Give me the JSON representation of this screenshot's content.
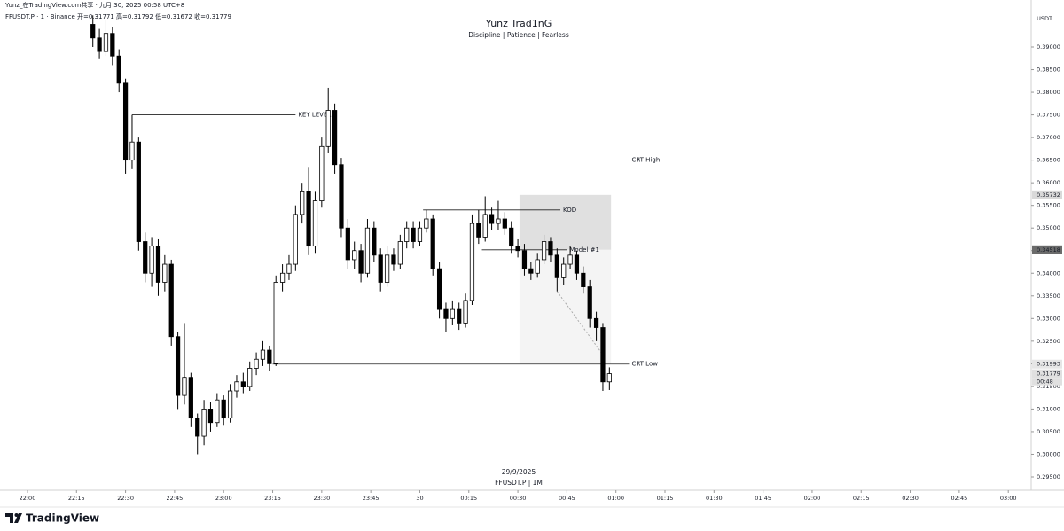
{
  "header": {
    "shared": "Yunz_在TradingView.com共享 · 九月 30, 2025 00:58 UTC+8",
    "symbol_line": "FFUSDT.P · 1 · Binance  开=0.31771  高=0.31792  低=0.31672  收=0.31779"
  },
  "chart_data": {
    "type": "candlestick",
    "title": "Yunz Trad1nG",
    "subtitle": "Discipline | Patience | Fearless",
    "date_label": "29/9/2025",
    "symbol_label": "FFUSDT.P | 1M",
    "currency": "USDT",
    "countdown": "00:48",
    "up_color": "#ffffff",
    "down_color": "#000000",
    "x": [
      20,
      22,
      24,
      26,
      28,
      30,
      32,
      34,
      36,
      38,
      40,
      42,
      44,
      46,
      48,
      50,
      52,
      54,
      56,
      58,
      60,
      62,
      64,
      66,
      68,
      70,
      72,
      74,
      76,
      78,
      80,
      82,
      84,
      86,
      88,
      90,
      92,
      94,
      96,
      98,
      100,
      102,
      104,
      106,
      108,
      110,
      112,
      114,
      116,
      118,
      120,
      122,
      124,
      126,
      128,
      130,
      132,
      134,
      136,
      138,
      140,
      142,
      144,
      146,
      148,
      150,
      152,
      154,
      156,
      158,
      160,
      162,
      164,
      166,
      168,
      170,
      172,
      174,
      176,
      178
    ],
    "open": [
      0.395,
      0.392,
      0.389,
      0.393,
      0.388,
      0.382,
      0.365,
      0.369,
      0.347,
      0.34,
      0.346,
      0.338,
      0.342,
      0.326,
      0.313,
      0.317,
      0.308,
      0.304,
      0.31,
      0.307,
      0.312,
      0.308,
      0.314,
      0.316,
      0.315,
      0.319,
      0.321,
      0.323,
      0.32,
      0.338,
      0.34,
      0.342,
      0.353,
      0.358,
      0.346,
      0.356,
      0.368,
      0.376,
      0.364,
      0.35,
      0.343,
      0.345,
      0.34,
      0.35,
      0.344,
      0.338,
      0.344,
      0.342,
      0.347,
      0.35,
      0.347,
      0.35,
      0.352,
      0.341,
      0.332,
      0.33,
      0.332,
      0.329,
      0.334,
      0.351,
      0.348,
      0.353,
      0.351,
      0.352,
      0.35,
      0.346,
      0.345,
      0.341,
      0.34,
      0.343,
      0.347,
      0.344,
      0.339,
      0.342,
      0.344,
      0.34,
      0.337,
      0.33,
      0.328,
      0.316
    ],
    "high": [
      0.397,
      0.394,
      0.396,
      0.3945,
      0.3895,
      0.383,
      0.375,
      0.37,
      0.349,
      0.348,
      0.3475,
      0.344,
      0.343,
      0.327,
      0.329,
      0.318,
      0.309,
      0.312,
      0.3115,
      0.3135,
      0.313,
      0.3155,
      0.3175,
      0.318,
      0.3205,
      0.3225,
      0.325,
      0.324,
      0.3395,
      0.342,
      0.344,
      0.355,
      0.36,
      0.3635,
      0.358,
      0.37,
      0.381,
      0.3775,
      0.3655,
      0.352,
      0.347,
      0.3465,
      0.352,
      0.3515,
      0.3455,
      0.346,
      0.3455,
      0.3485,
      0.3515,
      0.3515,
      0.3515,
      0.354,
      0.353,
      0.3425,
      0.3335,
      0.334,
      0.3335,
      0.3355,
      0.353,
      0.354,
      0.357,
      0.3545,
      0.356,
      0.3535,
      0.3515,
      0.3475,
      0.3465,
      0.3425,
      0.3445,
      0.3485,
      0.348,
      0.3455,
      0.3435,
      0.346,
      0.345,
      0.3415,
      0.3385,
      0.3315,
      0.329,
      0.3192
    ],
    "low": [
      0.39,
      0.3875,
      0.388,
      0.386,
      0.38,
      0.362,
      0.363,
      0.345,
      0.338,
      0.337,
      0.335,
      0.336,
      0.324,
      0.31,
      0.311,
      0.306,
      0.3,
      0.302,
      0.305,
      0.306,
      0.3065,
      0.307,
      0.3125,
      0.3135,
      0.314,
      0.3175,
      0.3195,
      0.3185,
      0.3195,
      0.336,
      0.3385,
      0.3405,
      0.351,
      0.344,
      0.3445,
      0.3545,
      0.3665,
      0.362,
      0.348,
      0.341,
      0.341,
      0.338,
      0.339,
      0.3425,
      0.336,
      0.337,
      0.3405,
      0.341,
      0.3455,
      0.3455,
      0.346,
      0.349,
      0.3395,
      0.33,
      0.327,
      0.3285,
      0.3275,
      0.328,
      0.333,
      0.3465,
      0.347,
      0.3495,
      0.3495,
      0.3485,
      0.3445,
      0.3435,
      0.3395,
      0.3385,
      0.339,
      0.342,
      0.3425,
      0.336,
      0.3375,
      0.341,
      0.3385,
      0.3355,
      0.328,
      0.325,
      0.314,
      0.3142
    ],
    "close": [
      0.392,
      0.389,
      0.393,
      0.388,
      0.382,
      0.365,
      0.369,
      0.347,
      0.34,
      0.346,
      0.338,
      0.342,
      0.326,
      0.313,
      0.317,
      0.308,
      0.304,
      0.31,
      0.307,
      0.312,
      0.308,
      0.314,
      0.316,
      0.315,
      0.319,
      0.321,
      0.323,
      0.32,
      0.338,
      0.34,
      0.342,
      0.353,
      0.358,
      0.346,
      0.356,
      0.368,
      0.376,
      0.364,
      0.35,
      0.343,
      0.345,
      0.34,
      0.35,
      0.344,
      0.338,
      0.344,
      0.342,
      0.347,
      0.35,
      0.347,
      0.35,
      0.352,
      0.341,
      0.332,
      0.33,
      0.332,
      0.329,
      0.334,
      0.351,
      0.348,
      0.353,
      0.351,
      0.352,
      0.35,
      0.346,
      0.345,
      0.341,
      0.34,
      0.343,
      0.347,
      0.344,
      0.339,
      0.342,
      0.344,
      0.34,
      0.337,
      0.33,
      0.328,
      0.316,
      0.3178
    ],
    "xlim": [
      -8.4,
      307
    ],
    "xticks": [
      {
        "value": 0,
        "label": "22:00"
      },
      {
        "value": 15,
        "label": "22:15"
      },
      {
        "value": 30,
        "label": "22:30"
      },
      {
        "value": 45,
        "label": "22:45"
      },
      {
        "value": 60,
        "label": "23:00"
      },
      {
        "value": 75,
        "label": "23:15"
      },
      {
        "value": 90,
        "label": "23:30"
      },
      {
        "value": 105,
        "label": "23:45"
      },
      {
        "value": 120,
        "label": "30"
      },
      {
        "value": 135,
        "label": "00:15"
      },
      {
        "value": 150,
        "label": "00:30"
      },
      {
        "value": 165,
        "label": "00:45"
      },
      {
        "value": 180,
        "label": "01:00"
      },
      {
        "value": 195,
        "label": "01:15"
      },
      {
        "value": 210,
        "label": "01:30"
      },
      {
        "value": 225,
        "label": "01:45"
      },
      {
        "value": 240,
        "label": "02:00"
      },
      {
        "value": 255,
        "label": "02:15"
      },
      {
        "value": 270,
        "label": "02:30"
      },
      {
        "value": 285,
        "label": "02:45"
      },
      {
        "value": 300,
        "label": "03:00"
      }
    ],
    "ylim": [
      0.29206,
      0.39764
    ],
    "yticks": [
      {
        "value": 0.295,
        "label": "0.29500"
      },
      {
        "value": 0.3,
        "label": "0.30000"
      },
      {
        "value": 0.305,
        "label": "0.30500"
      },
      {
        "value": 0.31,
        "label": "0.31000"
      },
      {
        "value": 0.315,
        "label": "0.31500"
      },
      {
        "value": 0.32,
        "label": "0.32000"
      },
      {
        "value": 0.325,
        "label": "0.32500"
      },
      {
        "value": 0.33,
        "label": "0.33000"
      },
      {
        "value": 0.335,
        "label": "0.33500"
      },
      {
        "value": 0.34,
        "label": "0.34000"
      },
      {
        "value": 0.345,
        "label": "0.34500"
      },
      {
        "value": 0.35,
        "label": "0.35000"
      },
      {
        "value": 0.355,
        "label": "0.35500"
      },
      {
        "value": 0.36,
        "label": "0.36000"
      },
      {
        "value": 0.365,
        "label": "0.36500"
      },
      {
        "value": 0.37,
        "label": "0.37000"
      },
      {
        "value": 0.375,
        "label": "0.37500"
      },
      {
        "value": 0.38,
        "label": "0.38000"
      },
      {
        "value": 0.385,
        "label": "0.38500"
      },
      {
        "value": 0.39,
        "label": "0.39000"
      }
    ],
    "levels": [
      {
        "label": "KEY LEVEL",
        "value": 0.375,
        "x": [
          32,
          82
        ]
      },
      {
        "label": "CRT High",
        "value": 0.365,
        "x": [
          85,
          184
        ]
      },
      {
        "label": "CRT Low",
        "value": 0.31993,
        "x": [
          75,
          184
        ]
      },
      {
        "label": "KOD",
        "value": 0.354,
        "x": [
          121,
          163
        ]
      },
      {
        "label": "Model #1",
        "value": 0.34518,
        "x": [
          139,
          165
        ]
      }
    ],
    "zones": [
      {
        "x": [
          150.5,
          178.5
        ],
        "y": [
          0.34518,
          0.35732
        ],
        "color": "#e0e0e0"
      },
      {
        "x": [
          150.5,
          178.5
        ],
        "y": [
          0.31993,
          0.34518
        ],
        "color": "#f4f4f4"
      }
    ],
    "dotted": {
      "x": [
        162,
        176
      ],
      "y": [
        0.336,
        0.322
      ]
    },
    "price_markers": [
      {
        "value": 0.35732,
        "label": "0.35732",
        "color": "#d9d9d9"
      },
      {
        "value": 0.34518,
        "label": "0.34518",
        "color": "#6b6b6b"
      },
      {
        "value": 0.31993,
        "label": "0.31993",
        "color": "#e6e6e6"
      },
      {
        "value": 0.31779,
        "label": "0.31779",
        "color": "#e0e0e0"
      }
    ]
  },
  "footer": {
    "brand": "TradingView"
  }
}
